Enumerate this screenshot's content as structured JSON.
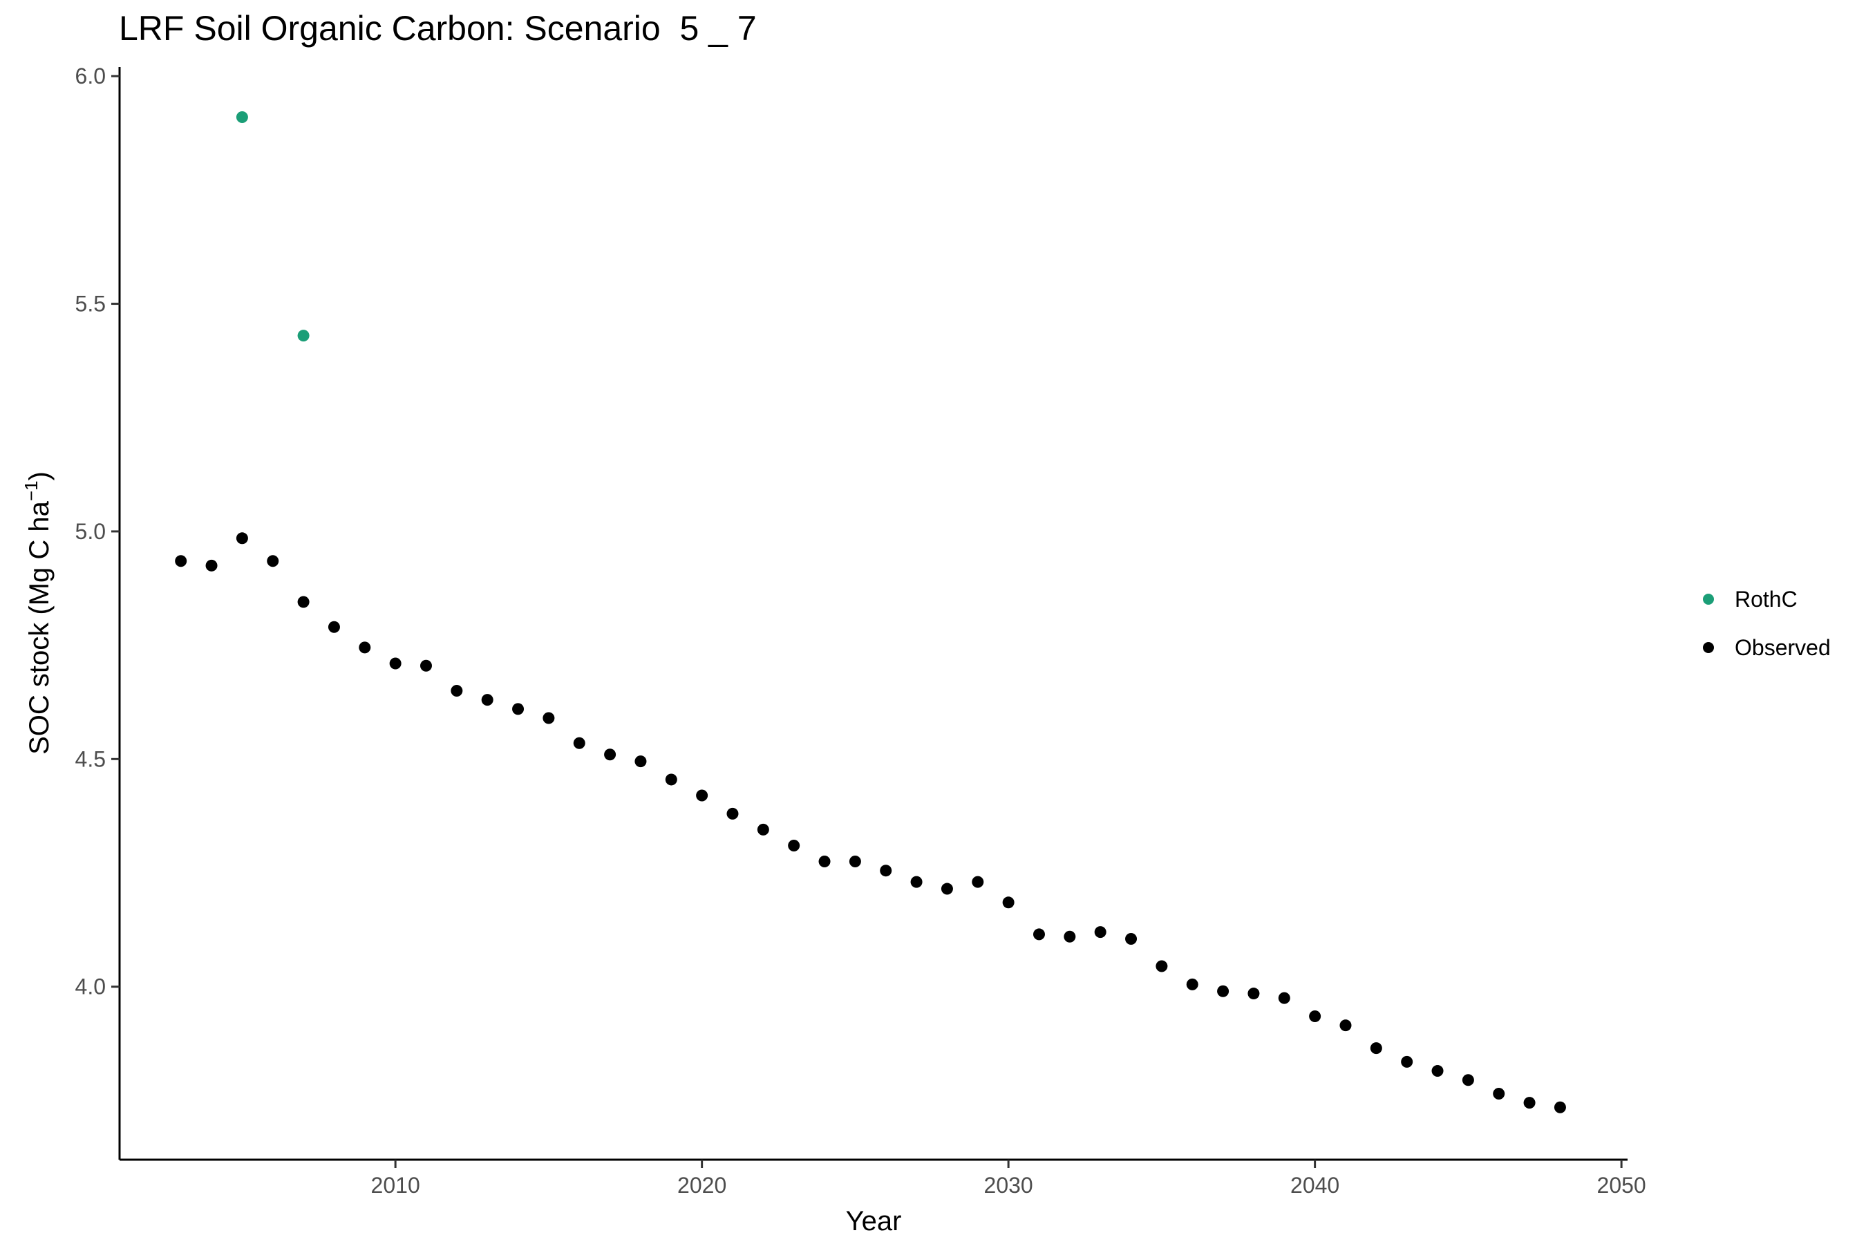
{
  "chart_data": {
    "type": "scatter",
    "title": "LRF Soil Organic Carbon: Scenario  5 _ 7",
    "xlabel": "Year",
    "ylabel": "SOC stock (Mg C ha",
    "ylabel_superscript": "−1",
    "ylabel_close": ")",
    "xlim": [
      2001.0,
      2050.2
    ],
    "ylim": [
      3.62,
      6.02
    ],
    "x_ticks": [
      2010,
      2020,
      2030,
      2040,
      2050
    ],
    "y_ticks": [
      4.0,
      4.5,
      5.0,
      5.5,
      6.0
    ],
    "x_tick_labels": [
      "2010",
      "2020",
      "2030",
      "2040",
      "2050"
    ],
    "y_tick_labels": [
      "4.0",
      "4.5",
      "5.0",
      "5.5",
      "6.0"
    ],
    "grid": false,
    "legend_position": "right",
    "series": [
      {
        "name": "RothC",
        "color": "#1b9e77",
        "x": [
          2005,
          2007
        ],
        "y": [
          5.91,
          5.43
        ]
      },
      {
        "name": "Observed",
        "color": "#000000",
        "x": [
          2003,
          2004,
          2005,
          2006,
          2007,
          2008,
          2009,
          2010,
          2011,
          2012,
          2013,
          2014,
          2015,
          2016,
          2017,
          2018,
          2019,
          2020,
          2021,
          2022,
          2023,
          2024,
          2025,
          2026,
          2027,
          2028,
          2029,
          2030,
          2031,
          2032,
          2033,
          2034,
          2035,
          2036,
          2037,
          2038,
          2039,
          2040,
          2041,
          2042,
          2043,
          2044,
          2045,
          2046,
          2047,
          2048
        ],
        "y": [
          4.935,
          4.925,
          4.985,
          4.935,
          4.845,
          4.79,
          4.745,
          4.71,
          4.705,
          4.65,
          4.63,
          4.61,
          4.59,
          4.535,
          4.51,
          4.495,
          4.455,
          4.42,
          4.38,
          4.345,
          4.31,
          4.275,
          4.275,
          4.255,
          4.23,
          4.215,
          4.23,
          4.185,
          4.115,
          4.11,
          4.12,
          4.105,
          4.045,
          4.005,
          3.99,
          3.985,
          3.975,
          3.935,
          3.915,
          3.865,
          3.835,
          3.815,
          3.795,
          3.765,
          3.745,
          3.735
        ]
      }
    ]
  }
}
